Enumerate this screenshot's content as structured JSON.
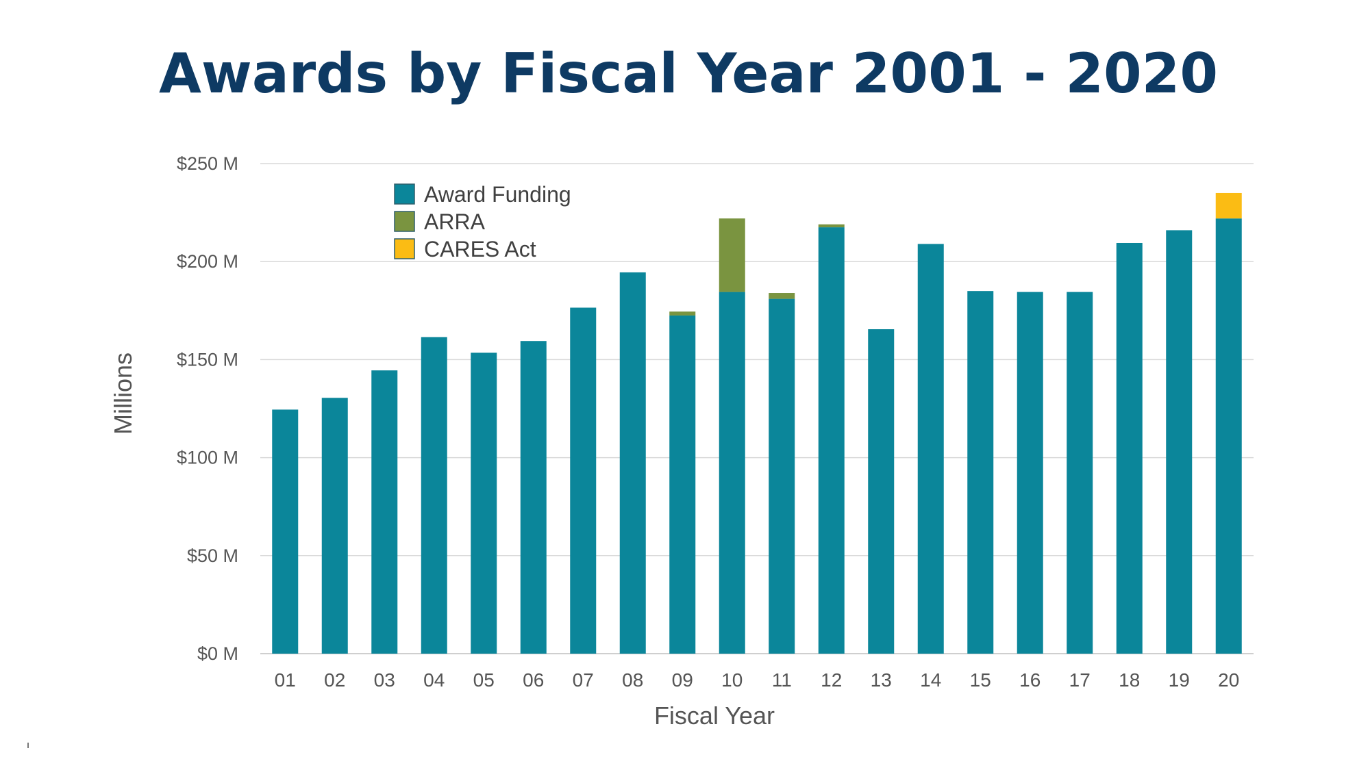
{
  "chart_data": {
    "type": "bar",
    "stacked": true,
    "title": "Awards by Fiscal Year 2001 - 2020",
    "xlabel": "Fiscal Year",
    "ylabel": "Millions",
    "ylim": [
      0,
      250
    ],
    "y_ticks": [
      {
        "value": 0,
        "label": "$0 M"
      },
      {
        "value": 50,
        "label": "$50 M"
      },
      {
        "value": 100,
        "label": "$100 M"
      },
      {
        "value": 150,
        "label": "$150 M"
      },
      {
        "value": 200,
        "label": "$200 M"
      },
      {
        "value": 250,
        "label": "$250 M"
      }
    ],
    "grid": true,
    "legend_position": "top-left",
    "categories": [
      "01",
      "02",
      "03",
      "04",
      "05",
      "06",
      "07",
      "08",
      "09",
      "10",
      "11",
      "12",
      "13",
      "14",
      "15",
      "16",
      "17",
      "18",
      "19",
      "20"
    ],
    "series": [
      {
        "name": "Award Funding",
        "color": "#0b869a",
        "values": [
          124.5,
          130.5,
          144.5,
          161.5,
          153.5,
          159.5,
          176.5,
          194.5,
          172.5,
          184.5,
          181.0,
          217.5,
          165.5,
          209.0,
          185.0,
          184.5,
          184.5,
          209.5,
          216.0,
          222.0
        ]
      },
      {
        "name": "ARRA",
        "color": "#7a9440",
        "values": [
          0,
          0,
          0,
          0,
          0,
          0,
          0,
          0,
          2.0,
          37.5,
          3.0,
          1.5,
          0,
          0,
          0,
          0,
          0,
          0,
          0,
          0
        ]
      },
      {
        "name": "CARES Act",
        "color": "#fbbc14",
        "values": [
          0,
          0,
          0,
          0,
          0,
          0,
          0,
          0,
          0,
          0,
          0,
          0,
          0,
          0,
          0,
          0,
          0,
          0,
          0,
          13.0
        ]
      }
    ]
  }
}
